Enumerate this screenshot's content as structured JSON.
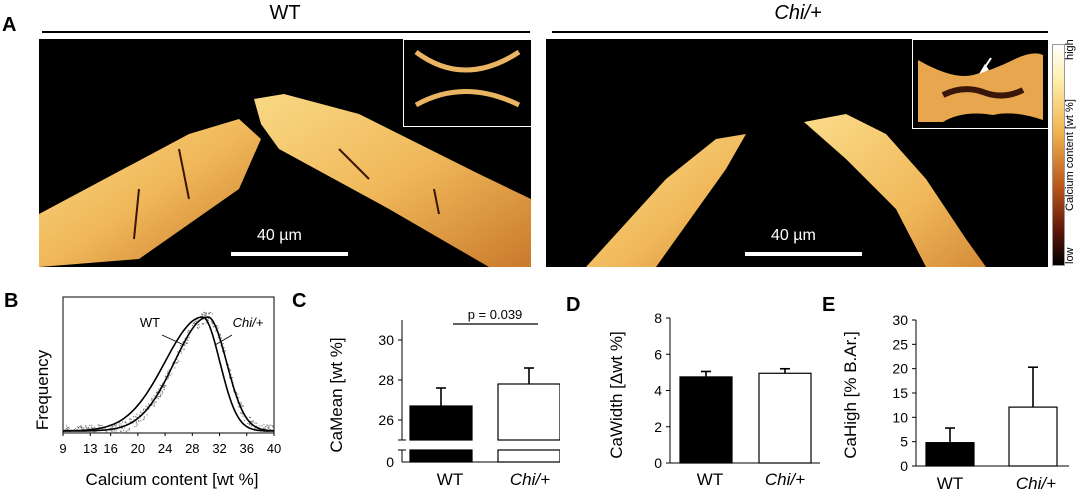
{
  "panels": {
    "a": "A",
    "b": "B",
    "c": "C",
    "d": "D",
    "e": "E"
  },
  "panel_a": {
    "wt_title": "WT",
    "chi_title": "Chi/+",
    "scale_label_left": "40 µm",
    "scale_label_right": "40 µm",
    "colorbar": {
      "high": "high",
      "low": "low",
      "label": "Calcium content [wt %]"
    }
  },
  "chart_data": [
    {
      "panel": "B",
      "type": "line",
      "xlabel": "Calcium content [wt %]",
      "ylabel": "Frequency",
      "xticks": [
        "9",
        "13",
        "16",
        "20",
        "24",
        "28",
        "32",
        "36",
        "40"
      ],
      "xlim": [
        9,
        40
      ],
      "series": [
        {
          "name": "WT",
          "peak_x": 29.5,
          "fwhm_left": 23,
          "fwhm_right": 32.5
        },
        {
          "name": "Chi/+",
          "peak_x": 30.3,
          "fwhm_left": 24.5,
          "fwhm_right": 33.5
        }
      ]
    },
    {
      "panel": "C",
      "type": "bar",
      "ylabel": "CaMean [wt %]",
      "categories": [
        "WT",
        "Chi/+"
      ],
      "values": [
        26.7,
        27.8
      ],
      "errors": [
        0.9,
        0.8
      ],
      "colors": [
        "#000000",
        "#ffffff"
      ],
      "ylim": [
        25,
        31
      ],
      "yticks": [
        "26",
        "28",
        "30"
      ],
      "ytick_values": [
        26,
        28,
        30
      ],
      "lower_tick": "0",
      "annotation": "p = 0.039"
    },
    {
      "panel": "D",
      "type": "bar",
      "ylabel": "CaWidth [Δwt %]",
      "categories": [
        "WT",
        "Chi/+"
      ],
      "values": [
        4.75,
        4.95
      ],
      "errors": [
        0.3,
        0.25
      ],
      "colors": [
        "#000000",
        "#ffffff"
      ],
      "ylim": [
        0,
        8
      ],
      "yticks": [
        "0",
        "2",
        "4",
        "6",
        "8"
      ]
    },
    {
      "panel": "E",
      "type": "bar",
      "ylabel": "CaHigh [% B.Ar.]",
      "categories": [
        "WT",
        "Chi/+"
      ],
      "values": [
        4.8,
        12.1
      ],
      "errors": [
        3.0,
        8.2
      ],
      "colors": [
        "#000000",
        "#ffffff"
      ],
      "ylim": [
        0,
        30
      ],
      "yticks": [
        "0",
        "5",
        "10",
        "15",
        "20",
        "25",
        "30"
      ]
    }
  ]
}
